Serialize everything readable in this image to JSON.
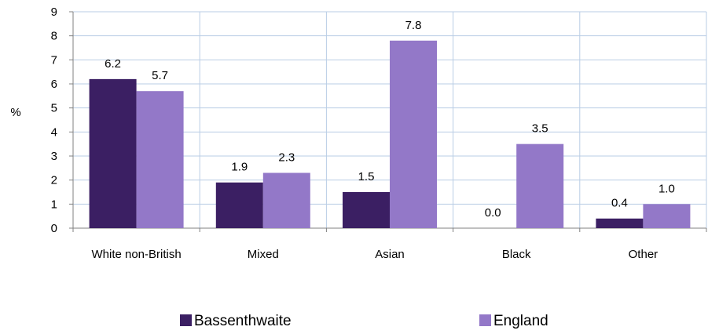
{
  "chart_data": {
    "type": "bar",
    "title": "",
    "xlabel": "",
    "ylabel": "%",
    "ylim": [
      0,
      9
    ],
    "yticks": [
      0,
      1,
      2,
      3,
      4,
      5,
      6,
      7,
      8,
      9
    ],
    "grid": true,
    "legend_position": "bottom",
    "categories": [
      "White non-British",
      "Mixed",
      "Asian",
      "Black",
      "Other"
    ],
    "series": [
      {
        "name": "Bassenthwaite",
        "color": "#3b1f63",
        "values": [
          6.2,
          1.9,
          1.5,
          0.0,
          0.4
        ],
        "labels": [
          "6.2",
          "1.9",
          "1.5",
          "0.0",
          "0.4"
        ]
      },
      {
        "name": "England",
        "color": "#9378c8",
        "values": [
          5.7,
          2.3,
          7.8,
          3.5,
          1.0
        ],
        "labels": [
          "5.7",
          "2.3",
          "7.8",
          "3.5",
          "1.0"
        ]
      }
    ],
    "gridline_color": "#b9cde5"
  }
}
